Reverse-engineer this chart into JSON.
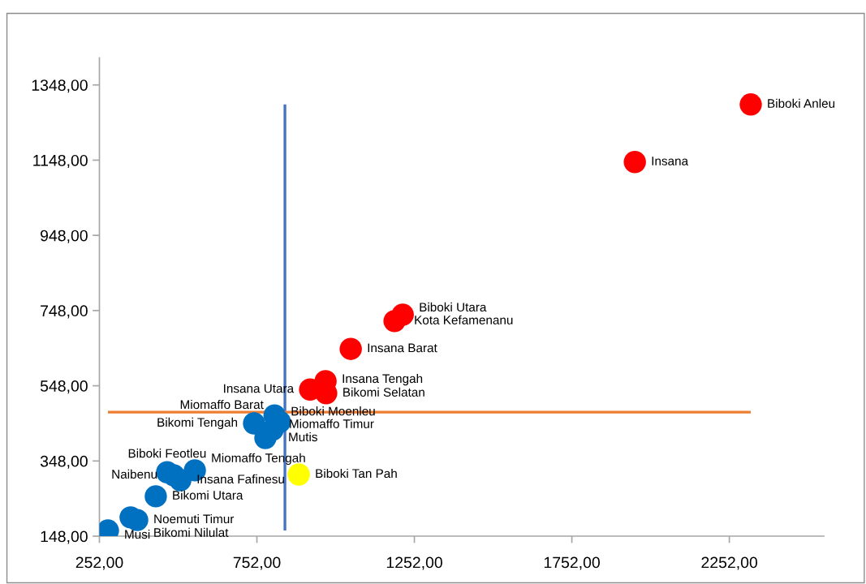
{
  "chart_data": {
    "type": "scatter",
    "marker": "circle",
    "xlim": [
      252,
      2552
    ],
    "xticks": [
      {
        "value": 252,
        "label": "252,00"
      },
      {
        "value": 752,
        "label": "752,00"
      },
      {
        "value": 1252,
        "label": "1252,00"
      },
      {
        "value": 1752,
        "label": "1752,00"
      },
      {
        "value": 2252,
        "label": "2252,00"
      }
    ],
    "ylim": [
      148,
      1420
    ],
    "yticks": [
      {
        "value": 148,
        "label": "148,00"
      },
      {
        "value": 348,
        "label": "348,00"
      },
      {
        "value": 548,
        "label": "548,00"
      },
      {
        "value": 748,
        "label": "748,00"
      },
      {
        "value": 948,
        "label": "948,00"
      },
      {
        "value": 1148,
        "label": "1148,00"
      },
      {
        "value": 1348,
        "label": "1348,00"
      }
    ],
    "series": [
      {
        "color": "#4472c4",
        "type": "line",
        "marker": "none",
        "x": [
          841,
          841
        ],
        "values": [
          163,
          1296
        ]
      },
      {
        "color": "#ed7d31",
        "type": "line",
        "marker": "none",
        "x": [
          279,
          2320
        ],
        "values": [
          478,
          478
        ]
      },
      {
        "color": "#ff0000",
        "x": [
          2320,
          1952,
          1215,
          1189,
          1050,
          970,
          921,
          972
        ],
        "values": [
          1296,
          1143,
          737,
          720,
          646,
          560,
          538,
          528
        ],
        "value_labels": [
          "Biboki Anleu",
          "Insana",
          "Biboki Utara",
          "Kota Kefamenanu",
          "Insana Barat",
          "Insana Tengah",
          "Insana Utara",
          "Bikomi Selatan"
        ]
      },
      {
        "color": "#ffff00",
        "x": [
          885
        ],
        "values": [
          312
        ],
        "value_labels": [
          "Biboki Tan Pah"
        ]
      },
      {
        "color": "#0070c0",
        "x": [
          808,
          825,
          743,
          802,
          779,
          555,
          467,
          488,
          509,
          431,
          351,
          372,
          279
        ],
        "values": [
          469,
          452,
          448,
          431,
          409,
          323,
          318,
          310,
          297,
          254,
          198,
          191,
          163
        ],
        "value_labels": [
          "Biboki Moenleu",
          "Miomaffo Barat",
          "Bikomi Tengah",
          "Miomaffo Timur",
          "Mutis",
          "Miomaffo Tengah",
          "Biboki Feotleu",
          "Naibenu",
          "Insana Fafinesu",
          "Bikomi Utara",
          "Bikomi Nilulat",
          "Noemuti Timur",
          "Musi"
        ]
      }
    ]
  }
}
